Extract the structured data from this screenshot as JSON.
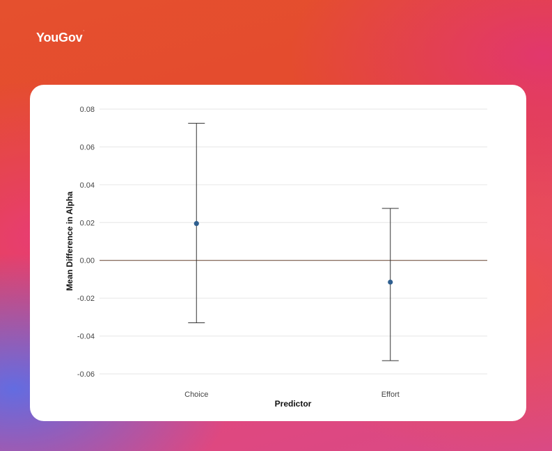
{
  "brand": {
    "name": "YouGov",
    "mark": "’"
  },
  "colors": {
    "point": "#2f5f8f",
    "errorbar": "#333333",
    "zero_line": "#7a5a48",
    "grid": "#e6e6e6"
  },
  "chart_data": {
    "type": "scatter",
    "subtype": "point-with-error-bars",
    "title": "",
    "xlabel": "Predictor",
    "ylabel": "Mean Difference in Alpha",
    "categories": [
      "Choice",
      "Effort"
    ],
    "values": [
      0.0195,
      -0.0115
    ],
    "lower": [
      -0.033,
      -0.053
    ],
    "upper": [
      0.0725,
      0.0275
    ],
    "ylim": [
      -0.06,
      0.08
    ],
    "yticks": [
      -0.06,
      -0.04,
      -0.02,
      0.0,
      0.02,
      0.04,
      0.06,
      0.08
    ],
    "ytick_labels": [
      "-0.06",
      "-0.04",
      "-0.02",
      "0.00",
      "0.02",
      "0.04",
      "0.06",
      "0.08"
    ],
    "reference_line": 0,
    "grid": true,
    "legend": "none"
  }
}
